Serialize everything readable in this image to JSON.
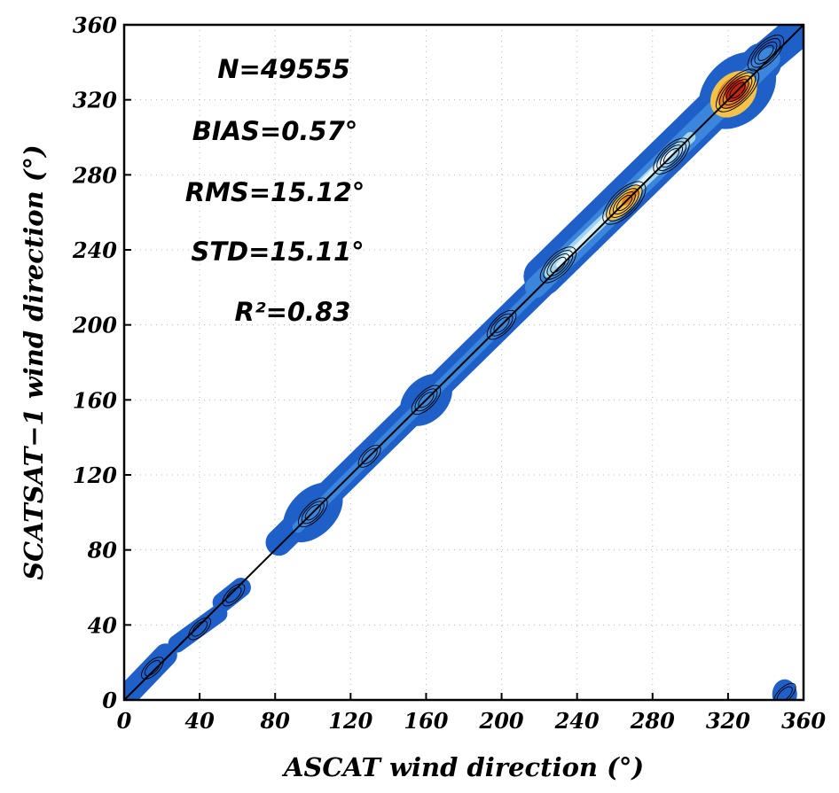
{
  "chart_data": {
    "type": "scatter",
    "subtype": "density-contour",
    "xlabel": "ASCAT wind direction (°)",
    "ylabel": "SCATSAT−1 wind direction (°)",
    "xlim": [
      0,
      360
    ],
    "ylim": [
      0,
      360
    ],
    "xticks": [
      "0",
      "40",
      "80",
      "120",
      "160",
      "200",
      "240",
      "280",
      "320",
      "360"
    ],
    "yticks": [
      "0",
      "40",
      "80",
      "120",
      "160",
      "200",
      "240",
      "280",
      "320",
      "360"
    ],
    "grid": true,
    "reference_line": {
      "x": [
        0,
        360
      ],
      "y": [
        0,
        360
      ]
    },
    "annotations": [
      "N=49555",
      "BIAS=0.57°",
      "RMS=15.12°",
      "STD=15.11°",
      "R²=0.83"
    ],
    "density_regions": [
      {
        "x": 15,
        "y": 17,
        "level": 1
      },
      {
        "x": 40,
        "y": 38,
        "level": 1
      },
      {
        "x": 58,
        "y": 56,
        "level": 1
      },
      {
        "x": 100,
        "y": 100,
        "level": 2
      },
      {
        "x": 130,
        "y": 130,
        "level": 1
      },
      {
        "x": 160,
        "y": 160,
        "level": 2
      },
      {
        "x": 200,
        "y": 200,
        "level": 2
      },
      {
        "x": 230,
        "y": 232,
        "level": 3
      },
      {
        "x": 265,
        "y": 265,
        "level": 5
      },
      {
        "x": 290,
        "y": 290,
        "level": 3
      },
      {
        "x": 325,
        "y": 325,
        "level": 7
      },
      {
        "x": 340,
        "y": 345,
        "level": 3
      },
      {
        "x": 350,
        "y": 3,
        "level": 1
      }
    ]
  },
  "colors": {
    "band_outer": "#1f5fc8",
    "band_mid": "#3b86dc",
    "band_light": "#9fd3ee",
    "band_pale": "#dff1fa",
    "hot_yellow": "#f2c24a",
    "hot_orange": "#e8821e",
    "hot_red": "#c8230f"
  }
}
